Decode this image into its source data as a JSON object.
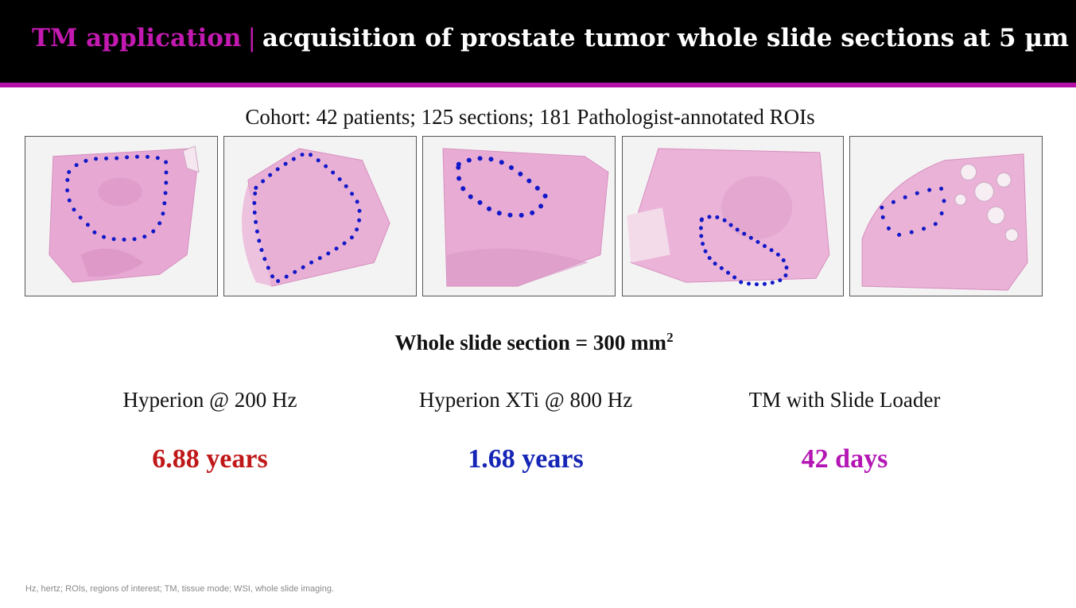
{
  "header": {
    "title_accent": "TM application",
    "title_separator": "|",
    "title_rest": "acquisition of prostate tumor whole slide sections at 5 µm"
  },
  "cohort": "Cohort: 42 patients; 125 sections; 181 Pathologist-annotated ROIs",
  "whole_slide": {
    "text": "Whole slide section = 300 mm",
    "superscript": "2"
  },
  "instruments": [
    {
      "label": "Hyperion @ 200 Hz",
      "value": "6.88 years",
      "color": "#c01818"
    },
    {
      "label": "Hyperion XTi @ 800 Hz",
      "value": "1.68 years",
      "color": "#1525b5"
    },
    {
      "label": "TM with Slide Loader",
      "value": "42 days",
      "color": "#b416b4"
    }
  ],
  "colors": {
    "header_bg": "#000000",
    "accent": "#b40fa6",
    "tissue": "#e6a7d2",
    "annotation": "#1218c8"
  },
  "footnote": "Hz, hertz; ROIs, regions of interest; TM, tissue mode; WSI, whole slide imaging."
}
